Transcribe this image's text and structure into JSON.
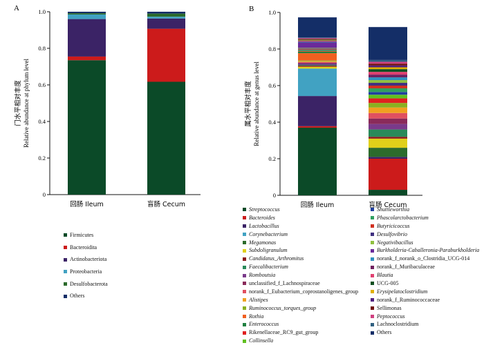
{
  "chart_data": [
    {
      "panel_label": "A",
      "type": "bar",
      "stacked": true,
      "ylabel_cn": "门水平相对丰度",
      "ylabel": "Relative abundance at phylum level",
      "ylim": [
        0,
        1.0
      ],
      "yticks": [
        "0",
        "0.2",
        "0.4",
        "0.6",
        "0.8",
        "1.0"
      ],
      "categories": [
        "回肠  Ileum",
        "盲肠  Cecum"
      ],
      "series": [
        {
          "name": "Firmicutes",
          "color": "#0b4a28",
          "values": [
            0.735,
            0.617
          ]
        },
        {
          "name": "Bacteroidita",
          "color": "#cc1b1b",
          "values": [
            0.02,
            0.29
          ]
        },
        {
          "name": "Actinobacteriota",
          "color": "#3b2366",
          "values": [
            0.205,
            0.056
          ]
        },
        {
          "name": "Proteobacteria",
          "color": "#41a2c2",
          "values": [
            0.025,
            0.01
          ]
        },
        {
          "name": "Desulfobacterota",
          "color": "#2c6b2c",
          "values": [
            0.007,
            0.017
          ]
        },
        {
          "name": "Others",
          "color": "#142e67",
          "values": [
            0.008,
            0.01
          ]
        }
      ]
    },
    {
      "panel_label": "B",
      "type": "bar",
      "stacked": true,
      "ylabel_cn": "属水平相对丰度",
      "ylabel": "Relative abundance at genus level",
      "ylim": [
        0,
        1.0
      ],
      "yticks": [
        "0",
        "0.2",
        "0.4",
        "0.6",
        "0.8",
        "1.0"
      ],
      "categories": [
        "回肠  Ileum",
        "盲肠  Cecum"
      ],
      "series": [
        {
          "name": "Streptococcus",
          "italic": true,
          "color": "#0b4a28",
          "values": [
            0.37,
            0.03
          ]
        },
        {
          "name": "Bacteroides",
          "italic": true,
          "color": "#cc1b1b",
          "values": [
            0.008,
            0.17
          ]
        },
        {
          "name": "Lactobacillus",
          "italic": true,
          "color": "#3b2366",
          "values": [
            0.165,
            0.01
          ]
        },
        {
          "name": "Corynebacterium",
          "italic": true,
          "color": "#41a2c2",
          "values": [
            0.15,
            0.0
          ]
        },
        {
          "name": "Megamonas",
          "italic": true,
          "color": "#2c6b2c",
          "values": [
            0.0,
            0.05
          ]
        },
        {
          "name": "Subdoligranulum",
          "italic": true,
          "color": "#e0d01a",
          "values": [
            0.01,
            0.05
          ]
        },
        {
          "name": "Candidatus_Arthromitus",
          "italic": true,
          "color": "#8b1a1a",
          "values": [
            0.006,
            0.01
          ]
        },
        {
          "name": "Faecalibacterium",
          "italic": true,
          "color": "#2a8a5a",
          "values": [
            0.004,
            0.04
          ]
        },
        {
          "name": "Romboutsia",
          "italic": true,
          "color": "#7a3a8a",
          "values": [
            0.008,
            0.03
          ]
        },
        {
          "name": "unclassified_f_Lachnospiraceae",
          "color": "#8a2a5a",
          "values": [
            0.004,
            0.03
          ]
        },
        {
          "name": "norank_f_Eubacterium_coprostanoligenes_group",
          "color": "#e05060",
          "values": [
            0.004,
            0.03
          ]
        },
        {
          "name": "Alistipes",
          "italic": true,
          "color": "#f0a020",
          "values": [
            0.004,
            0.03
          ]
        },
        {
          "name": "Ruminococcus_torques_group",
          "italic": true,
          "color": "#8ab020",
          "values": [
            0.004,
            0.025
          ]
        },
        {
          "name": "Rothia",
          "italic": true,
          "color": "#f06020",
          "values": [
            0.04,
            0.0
          ]
        },
        {
          "name": "Enterococcus",
          "italic": true,
          "color": "#208040",
          "values": [
            0.008,
            0.0
          ]
        },
        {
          "name": "Rikenellaceae_RC9_gut_group",
          "color": "#e02020",
          "values": [
            0.003,
            0.025
          ]
        },
        {
          "name": "Collinsella",
          "italic": true,
          "color": "#60c020",
          "values": [
            0.003,
            0.02
          ]
        },
        {
          "name": "Shuttleworthia",
          "italic": true,
          "color": "#2040a0",
          "values": [
            0.003,
            0.015
          ]
        },
        {
          "name": "Phascolarctobacterium",
          "italic": true,
          "color": "#30a060",
          "values": [
            0.003,
            0.02
          ]
        },
        {
          "name": "Butyricicoccus",
          "italic": true,
          "color": "#d03020",
          "values": [
            0.003,
            0.015
          ]
        },
        {
          "name": "Desulfovibrio",
          "italic": true,
          "color": "#403080",
          "values": [
            0.003,
            0.015
          ]
        },
        {
          "name": "Negativibacillus",
          "italic": true,
          "color": "#90c040",
          "values": [
            0.003,
            0.015
          ]
        },
        {
          "name": "Burkholderia-Caballeronia-Paraburkholderia",
          "italic": true,
          "color": "#6a2a9a",
          "values": [
            0.03,
            0.0
          ]
        },
        {
          "name": "norank_f_norank_o_Clostridia_UCG-014",
          "color": "#3090c0",
          "values": [
            0.003,
            0.015
          ]
        },
        {
          "name": "norank_f_Muribaculaceae",
          "color": "#702060",
          "values": [
            0.003,
            0.015
          ]
        },
        {
          "name": "Blautia",
          "italic": true,
          "color": "#e04070",
          "values": [
            0.003,
            0.015
          ]
        },
        {
          "name": "UCG-005",
          "color": "#105020",
          "values": [
            0.003,
            0.015
          ]
        },
        {
          "name": "Erysipelatoclostridium",
          "italic": true,
          "color": "#e0b000",
          "values": [
            0.003,
            0.01
          ]
        },
        {
          "name": "norank_f_Ruminococcaceae",
          "color": "#502080",
          "values": [
            0.003,
            0.01
          ]
        },
        {
          "name": "Sellimonas",
          "color": "#701010",
          "values": [
            0.003,
            0.01
          ]
        },
        {
          "name": "Peptococcus",
          "italic": true,
          "color": "#d04080",
          "values": [
            0.003,
            0.01
          ]
        },
        {
          "name": "Lachnoclostridium",
          "color": "#306080",
          "values": [
            0.003,
            0.01
          ]
        },
        {
          "name": "Others",
          "color": "#142e67",
          "values": [
            0.11,
            0.18
          ]
        }
      ]
    }
  ]
}
